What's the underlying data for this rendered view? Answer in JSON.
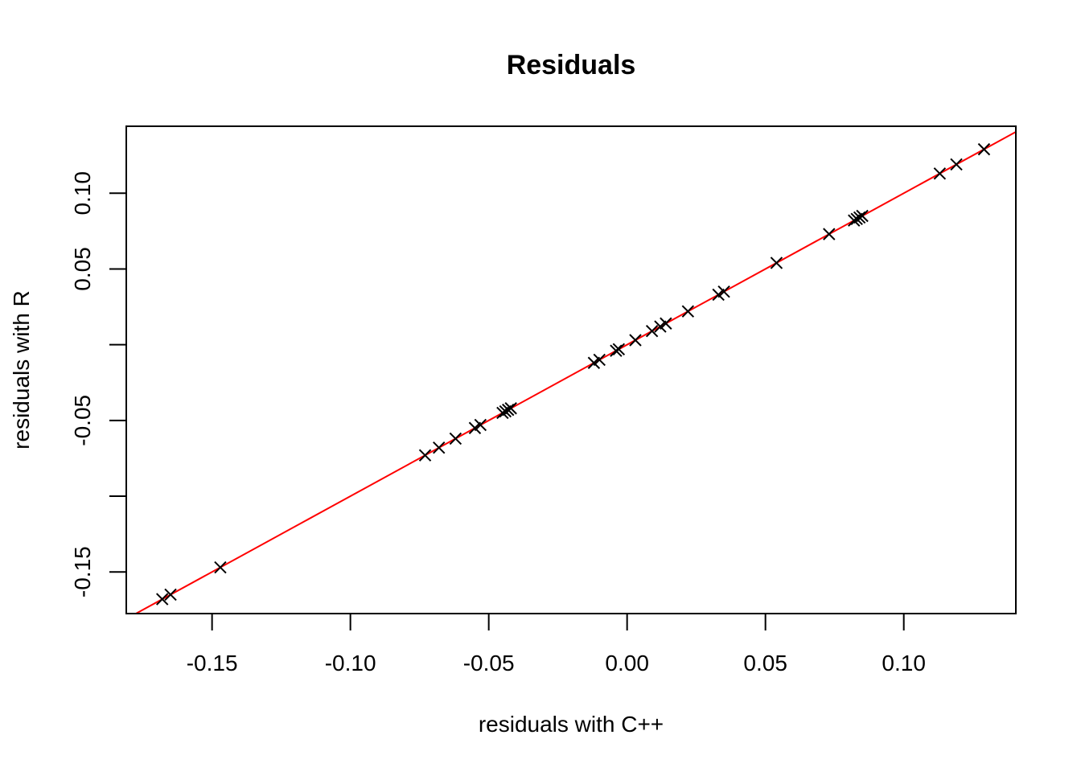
{
  "chart_data": {
    "type": "scatter",
    "title": "Residuals",
    "xlabel": "residuals with C++",
    "ylabel": "residuals with R",
    "xlim": [
      -0.181,
      0.1405
    ],
    "ylim": [
      -0.1775,
      0.1442
    ],
    "x_ticks": [
      -0.15,
      -0.1,
      -0.05,
      0.0,
      0.05,
      0.1
    ],
    "x_tick_labels": [
      "-0.15",
      "-0.10",
      "-0.05",
      "0.00",
      "0.05",
      "0.10"
    ],
    "y_ticks": [
      -0.15,
      -0.1,
      -0.05,
      0.0,
      0.05,
      0.1
    ],
    "y_tick_labels": [
      "-0.15",
      "",
      "-0.05",
      "",
      "0.05",
      "0.10"
    ],
    "grid": false,
    "legend": "none",
    "marker": "x",
    "marker_color": "#000000",
    "reference_line": {
      "type": "identity",
      "slope": 1,
      "intercept": 0,
      "color": "#ff0000"
    },
    "points": [
      {
        "x": -0.168,
        "y": -0.168
      },
      {
        "x": -0.165,
        "y": -0.165
      },
      {
        "x": -0.147,
        "y": -0.147
      },
      {
        "x": -0.073,
        "y": -0.073
      },
      {
        "x": -0.068,
        "y": -0.068
      },
      {
        "x": -0.062,
        "y": -0.062
      },
      {
        "x": -0.055,
        "y": -0.055
      },
      {
        "x": -0.053,
        "y": -0.053
      },
      {
        "x": -0.045,
        "y": -0.045
      },
      {
        "x": -0.044,
        "y": -0.044
      },
      {
        "x": -0.043,
        "y": -0.043
      },
      {
        "x": -0.042,
        "y": -0.042
      },
      {
        "x": -0.012,
        "y": -0.012
      },
      {
        "x": -0.01,
        "y": -0.01
      },
      {
        "x": -0.004,
        "y": -0.004
      },
      {
        "x": -0.003,
        "y": -0.003
      },
      {
        "x": 0.003,
        "y": 0.003
      },
      {
        "x": 0.009,
        "y": 0.009
      },
      {
        "x": 0.012,
        "y": 0.012
      },
      {
        "x": 0.014,
        "y": 0.014
      },
      {
        "x": 0.022,
        "y": 0.022
      },
      {
        "x": 0.033,
        "y": 0.033
      },
      {
        "x": 0.035,
        "y": 0.035
      },
      {
        "x": 0.054,
        "y": 0.054
      },
      {
        "x": 0.073,
        "y": 0.073
      },
      {
        "x": 0.082,
        "y": 0.082
      },
      {
        "x": 0.083,
        "y": 0.083
      },
      {
        "x": 0.084,
        "y": 0.084
      },
      {
        "x": 0.085,
        "y": 0.085
      },
      {
        "x": 0.113,
        "y": 0.113
      },
      {
        "x": 0.119,
        "y": 0.119
      },
      {
        "x": 0.129,
        "y": 0.129
      }
    ]
  }
}
